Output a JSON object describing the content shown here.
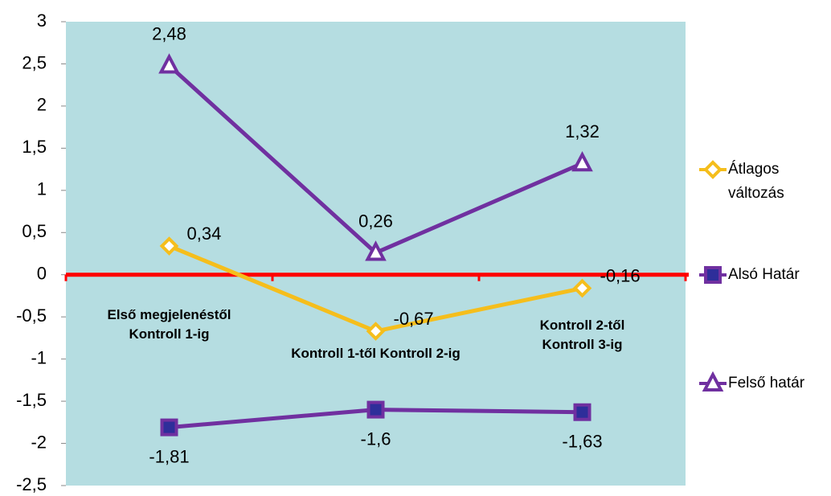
{
  "chart_data": {
    "type": "line",
    "categories": [
      "Első megjelenéstől Kontroll 1-ig",
      "Kontroll 1-től Kontroll 2-ig",
      "Kontroll 2-től Kontroll 3-ig"
    ],
    "series": [
      {
        "name": "Átlagos változás",
        "color": "#f5be1c",
        "marker": "diamond",
        "values": [
          0.34,
          -0.67,
          -0.16
        ],
        "value_labels": [
          "0,34",
          "-0,67",
          "-0,16"
        ]
      },
      {
        "name": "Alsó Határ",
        "color": "#7030a0",
        "marker": "square",
        "values": [
          -1.81,
          -1.6,
          -1.63
        ],
        "value_labels": [
          "-1,81",
          "-1,6",
          "-1,63"
        ]
      },
      {
        "name": "Felső határ",
        "color": "#7030a0",
        "marker": "triangle",
        "values": [
          2.48,
          0.26,
          1.32
        ],
        "value_labels": [
          "2,48",
          "0,26",
          "1,32"
        ]
      }
    ],
    "ylim": [
      -2.5,
      3
    ],
    "yticks": [
      {
        "value": -2.5,
        "label": "-2,5"
      },
      -2,
      {
        "value": -1.5,
        "label": "-1,5"
      },
      -1,
      {
        "value": -0.5,
        "label": "-0,5"
      },
      0,
      {
        "value": 0.5,
        "label": "0,5"
      },
      1,
      {
        "value": 1.5,
        "label": "1,5"
      },
      2,
      {
        "value": 2.5,
        "label": "2,5"
      },
      3
    ],
    "legend": "right"
  }
}
